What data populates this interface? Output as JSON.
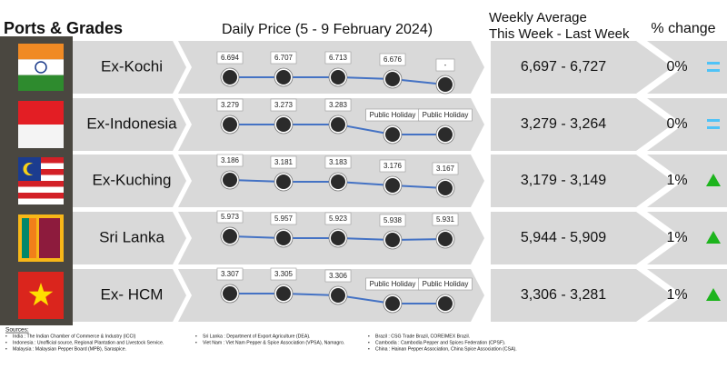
{
  "header": {
    "ports": "Ports & Grades",
    "daily": "Daily Price (5 - 9 February 2024)",
    "weekly_line1": "Weekly Average",
    "weekly_line2": "This Week - Last Week",
    "change": "% change"
  },
  "rows": [
    {
      "port": "Ex-Kochi",
      "flag": "india",
      "daily": [
        "6.694",
        "6.707",
        "6.713",
        "6.676",
        "-"
      ],
      "weekly": "6,697 - 6,727",
      "change": "0%",
      "trend": "equal"
    },
    {
      "port": "Ex-Indonesia",
      "flag": "indonesia",
      "daily": [
        "3.279",
        "3.273",
        "3.283",
        "Public Holiday",
        "Public Holiday"
      ],
      "weekly": "3,279 - 3,264",
      "change": "0%",
      "trend": "equal"
    },
    {
      "port": "Ex-Kuching",
      "flag": "malaysia",
      "daily": [
        "3.186",
        "3.181",
        "3.183",
        "3.176",
        "3.167"
      ],
      "weekly": "3,179 - 3,149",
      "change": "1%",
      "trend": "up"
    },
    {
      "port": "Sri Lanka",
      "flag": "srilanka",
      "daily": [
        "5.973",
        "5.957",
        "5.923",
        "5.938",
        "5.931"
      ],
      "weekly": "5,944 - 5,909",
      "change": "1%",
      "trend": "up"
    },
    {
      "port": "Ex- HCM",
      "flag": "vietnam",
      "daily": [
        "3.307",
        "3.305",
        "3.306",
        "Public Holiday",
        "Public Holiday"
      ],
      "weekly": "3,306 - 3,281",
      "change": "1%",
      "trend": "up"
    }
  ],
  "sources": {
    "title": "Sources:",
    "items": [
      [
        "India : The Indian Chamber of Commerce & Industry (ICCI)",
        "Indonesia : Unofficial source, Regional Plantation and Livestock Service.",
        "Malaysia : Malaysian Pepper Board (MPB), Saraspice."
      ],
      [
        "Sri Lanka : Department of Export Agriculture (DEA).",
        "Viet Nam : Viet Nam Pepper & Spice Association (VPSA), Namagro."
      ],
      [
        "Brazil : CSG Trade Brazil, COREIMEX Brazil.",
        "Cambodia : Cambodia Pepper and Spices Federation (CPSF).",
        "China : Hainan Pepper Association, China Spice Association (CSA)."
      ]
    ]
  }
}
